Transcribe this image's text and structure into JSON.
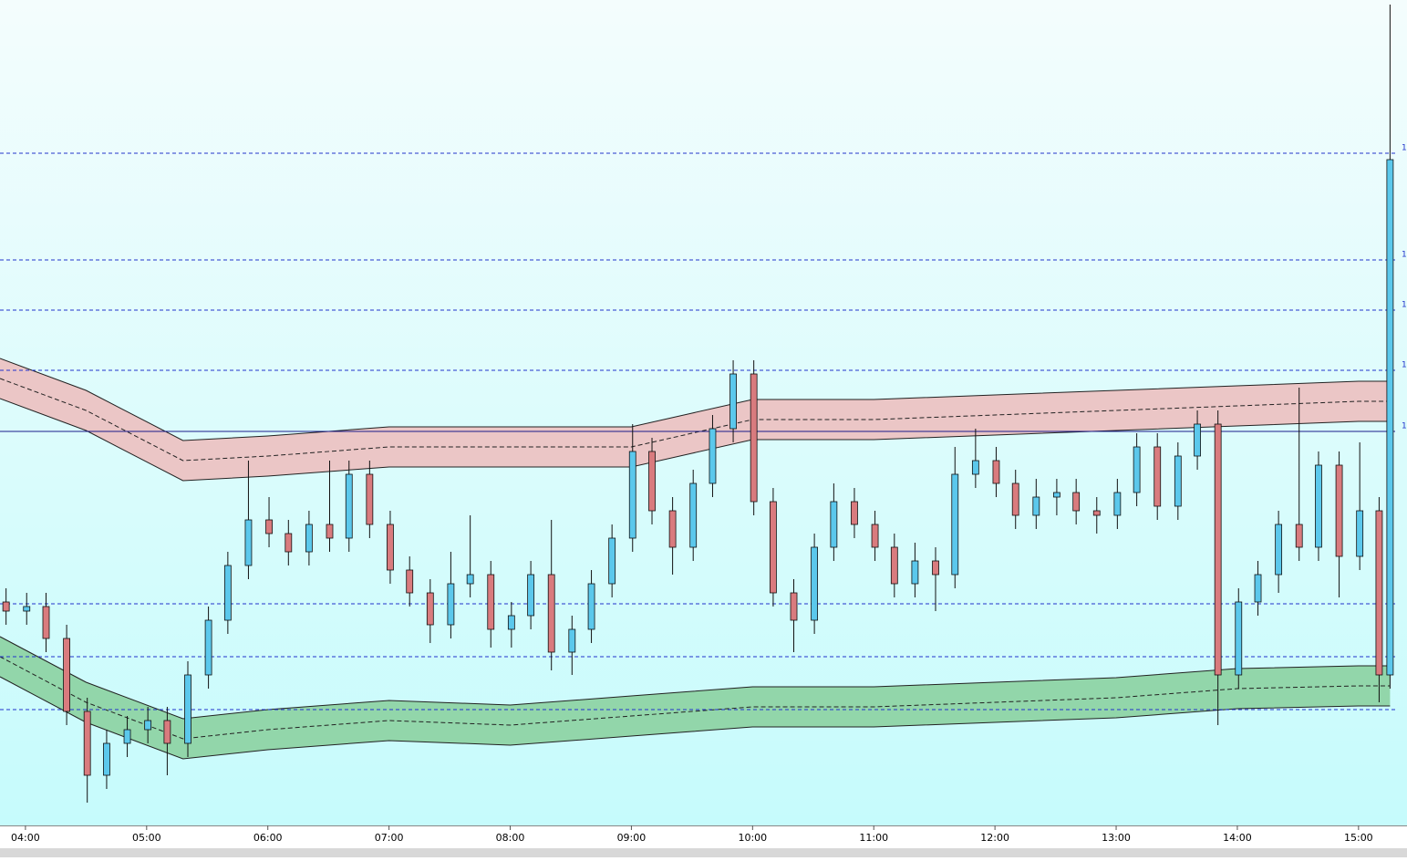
{
  "chart_data": {
    "type": "candlestick",
    "xlim": [
      3.79,
      15.4
    ],
    "ylim": [
      0,
      905
    ],
    "xticks": [
      {
        "value": 4,
        "label": "04:00"
      },
      {
        "value": 5,
        "label": "05:00"
      },
      {
        "value": 6,
        "label": "06:00"
      },
      {
        "value": 7,
        "label": "07:00"
      },
      {
        "value": 8,
        "label": "08:00"
      },
      {
        "value": 9,
        "label": "09:00"
      },
      {
        "value": 10,
        "label": "10:00"
      },
      {
        "value": 11,
        "label": "11:00"
      },
      {
        "value": 12,
        "label": "12:00"
      },
      {
        "value": 13,
        "label": "13:00"
      },
      {
        "value": 14,
        "label": "14:00"
      },
      {
        "value": 15,
        "label": "15:00"
      }
    ],
    "levels": [
      {
        "value": 737,
        "label": "1",
        "style": "dashed"
      },
      {
        "value": 620,
        "label": "1",
        "style": "dashed"
      },
      {
        "value": 565,
        "label": "1",
        "style": "dashed"
      },
      {
        "value": 499,
        "label": "1",
        "style": "dashed"
      },
      {
        "value": 432,
        "label": "1",
        "style": "solid"
      },
      {
        "value": 243,
        "style": "dashed"
      },
      {
        "value": 185,
        "style": "dashed"
      },
      {
        "value": 127,
        "style": "dashed"
      }
    ],
    "up_color": "#5bc8ec",
    "down_color": "#d97b7e",
    "x": [
      3.84,
      4.01,
      4.17,
      4.34,
      4.51,
      4.67,
      4.84,
      5.01,
      5.17,
      5.34,
      5.51,
      5.67,
      5.84,
      6.01,
      6.17,
      6.34,
      6.51,
      6.67,
      6.84,
      7.01,
      7.17,
      7.34,
      7.51,
      7.67,
      7.84,
      8.01,
      8.17,
      8.34,
      8.51,
      8.67,
      8.84,
      9.01,
      9.17,
      9.34,
      9.51,
      9.67,
      9.84,
      10.01,
      10.17,
      10.34,
      10.51,
      10.67,
      10.84,
      11.01,
      11.17,
      11.34,
      11.51,
      11.67,
      11.84,
      12.01,
      12.17,
      12.34,
      12.51,
      12.67,
      12.84,
      13.01,
      13.17,
      13.34,
      13.51,
      13.67,
      13.84,
      14.01,
      14.17,
      14.34,
      14.51,
      14.67,
      14.84,
      15.01,
      15.17,
      15.26
    ],
    "open": [
      245,
      235,
      240,
      205,
      125,
      55,
      90,
      105,
      115,
      90,
      165,
      225,
      285,
      335,
      320,
      300,
      330,
      315,
      385,
      330,
      280,
      255,
      220,
      265,
      275,
      215,
      230,
      275,
      190,
      215,
      265,
      315,
      410,
      345,
      305,
      375,
      435,
      495,
      355,
      255,
      225,
      305,
      355,
      330,
      305,
      265,
      290,
      275,
      385,
      400,
      375,
      340,
      360,
      365,
      345,
      340,
      365,
      415,
      350,
      405,
      440,
      165,
      245,
      275,
      330,
      305,
      395,
      295,
      345,
      165
    ],
    "high": [
      260,
      255,
      255,
      220,
      140,
      105,
      120,
      130,
      130,
      180,
      240,
      300,
      400,
      360,
      335,
      345,
      400,
      400,
      400,
      345,
      295,
      270,
      300,
      340,
      290,
      245,
      290,
      335,
      230,
      280,
      330,
      440,
      425,
      360,
      390,
      450,
      510,
      510,
      370,
      270,
      320,
      375,
      370,
      345,
      320,
      310,
      305,
      415,
      435,
      415,
      390,
      380,
      380,
      380,
      360,
      380,
      430,
      430,
      420,
      455,
      455,
      260,
      290,
      345,
      480,
      410,
      410,
      420,
      360,
      900
    ],
    "low": [
      220,
      220,
      190,
      110,
      25,
      40,
      75,
      90,
      55,
      75,
      150,
      210,
      270,
      305,
      285,
      285,
      300,
      300,
      315,
      265,
      240,
      200,
      205,
      250,
      195,
      195,
      215,
      170,
      165,
      200,
      250,
      300,
      330,
      275,
      290,
      360,
      420,
      340,
      240,
      190,
      210,
      290,
      315,
      290,
      250,
      250,
      235,
      260,
      370,
      360,
      325,
      325,
      340,
      330,
      320,
      325,
      350,
      335,
      335,
      390,
      110,
      150,
      230,
      255,
      290,
      290,
      250,
      280,
      135,
      150
    ],
    "close": [
      235,
      240,
      205,
      125,
      55,
      90,
      105,
      115,
      90,
      165,
      225,
      285,
      335,
      320,
      300,
      330,
      315,
      385,
      330,
      280,
      255,
      220,
      265,
      275,
      215,
      230,
      275,
      190,
      215,
      265,
      315,
      410,
      345,
      305,
      375,
      435,
      495,
      355,
      255,
      225,
      305,
      355,
      330,
      305,
      265,
      290,
      275,
      385,
      400,
      375,
      340,
      360,
      365,
      345,
      340,
      365,
      415,
      350,
      405,
      440,
      165,
      245,
      275,
      330,
      305,
      395,
      295,
      345,
      165,
      730
    ],
    "band_x": [
      3.79,
      4.5,
      5.3,
      6,
      7,
      8,
      9,
      9.5,
      10,
      11,
      12,
      13,
      14,
      15,
      15.26
    ],
    "bands": [
      {
        "color": "#ebc6c6",
        "upper": [
          512,
          477,
          422,
          427,
          437,
          437,
          437,
          452,
          467,
          467,
          472,
          477,
          482,
          487,
          487
        ],
        "middle": [
          490,
          455,
          400,
          405,
          415,
          415,
          415,
          430,
          445,
          445,
          450,
          455,
          460,
          465,
          465
        ],
        "lower": [
          468,
          433,
          378,
          383,
          393,
          393,
          393,
          408,
          423,
          423,
          428,
          433,
          438,
          443,
          443
        ]
      },
      {
        "color": "#92d6aa",
        "upper": [
          207,
          157,
          117,
          127,
          137,
          132,
          142,
          147,
          152,
          152,
          157,
          162,
          172,
          175,
          175
        ],
        "middle": [
          185,
          135,
          95,
          105,
          115,
          110,
          120,
          125,
          130,
          130,
          135,
          140,
          150,
          153,
          153
        ],
        "lower": [
          163,
          113,
          73,
          83,
          93,
          88,
          98,
          103,
          108,
          108,
          113,
          118,
          128,
          131,
          131
        ]
      }
    ]
  }
}
